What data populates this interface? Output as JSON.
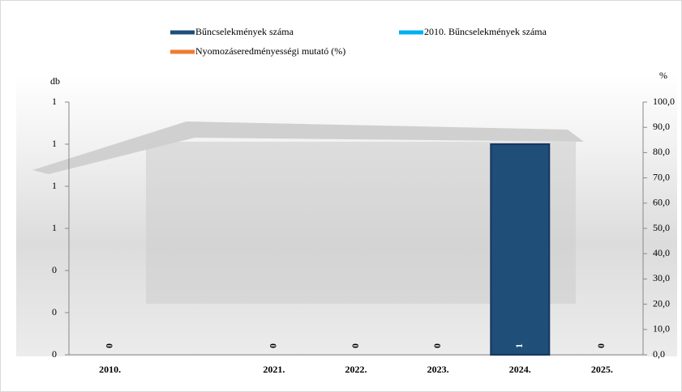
{
  "chart_data": {
    "type": "bar",
    "categories": [
      "2010.",
      null,
      "2021.",
      "2022.",
      "2023.",
      "2024.",
      "2025."
    ],
    "series": [
      {
        "name": "Bűncselekmények száma",
        "color": "#1f4e79",
        "values": [
          0,
          null,
          0,
          0,
          0,
          1,
          0
        ]
      },
      {
        "name": "2010. Bűncselekmények száma",
        "color": "#00b0f0",
        "values": [
          null,
          null,
          null,
          null,
          null,
          null,
          null
        ]
      },
      {
        "name": "Nyomozáseredményességi mutató (%)",
        "color": "#ed7d31",
        "axis": "y2",
        "values": [
          null,
          null,
          null,
          null,
          null,
          null,
          null
        ]
      }
    ],
    "ylabel": "db",
    "y2label": "%",
    "ylim": [
      0,
      1.2
    ],
    "yticks": [
      0,
      {
        "value": 0.2,
        "label": "0"
      },
      {
        "value": 0.4,
        "label": "0"
      },
      {
        "value": 0.6,
        "label": "1"
      },
      {
        "value": 0.8,
        "label": "1"
      },
      {
        "value": 1,
        "label": "1"
      },
      {
        "value": 1.2,
        "label": "1"
      }
    ],
    "y2lim": [
      0,
      100
    ],
    "y2ticks": [
      {
        "value": 0,
        "label": "0,0"
      },
      {
        "value": 10,
        "label": "10,0"
      },
      {
        "value": 20,
        "label": "20,0"
      },
      {
        "value": 30,
        "label": "30,0"
      },
      {
        "value": 40,
        "label": "40,0"
      },
      {
        "value": 50,
        "label": "50,0"
      },
      {
        "value": 60,
        "label": "60,0"
      },
      {
        "value": 70,
        "label": "70,0"
      },
      {
        "value": 80,
        "label": "80,0"
      },
      {
        "value": 90,
        "label": "90,0"
      },
      {
        "value": 100,
        "label": "100,0"
      }
    ]
  }
}
